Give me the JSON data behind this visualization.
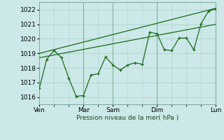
{
  "bg_color": "#cce8e8",
  "grid_color": "#b0d4cc",
  "line_color": "#1a6b1a",
  "ylim": [
    1015.5,
    1022.5
  ],
  "yticks": [
    1016,
    1017,
    1018,
    1019,
    1020,
    1021,
    1022
  ],
  "xlabel": "Pression niveau de la mer( hPa )",
  "xtick_labels": [
    "Ven",
    "",
    "Mar",
    "Sam",
    "",
    "Dim",
    "",
    "Lun"
  ],
  "xtick_positions": [
    0,
    2,
    3,
    5,
    6,
    8,
    10,
    12
  ],
  "day_vlines_x": [
    0,
    3,
    5,
    8,
    12
  ],
  "trend_upper": {
    "x": [
      0,
      12
    ],
    "y": [
      1019.0,
      1022.1
    ]
  },
  "trend_lower": {
    "x": [
      0,
      12
    ],
    "y": [
      1018.7,
      1021.0
    ]
  },
  "main_x": [
    0,
    0.5,
    1.0,
    1.5,
    2.0,
    2.5,
    3.0,
    3.5,
    4.0,
    4.5,
    5.0,
    5.5,
    6.0,
    6.5,
    7.0,
    7.5,
    8.0,
    8.5,
    9.0,
    9.5,
    10.0,
    10.5,
    11.0,
    11.5,
    12.0
  ],
  "main_y": [
    1016.6,
    1018.6,
    1019.2,
    1018.7,
    1017.3,
    1016.05,
    1016.1,
    1017.5,
    1017.6,
    1018.75,
    1018.2,
    1017.85,
    1018.2,
    1018.35,
    1018.25,
    1020.45,
    1020.35,
    1019.25,
    1019.2,
    1020.05,
    1020.05,
    1019.25,
    1021.05,
    1021.9,
    1022.05
  ]
}
